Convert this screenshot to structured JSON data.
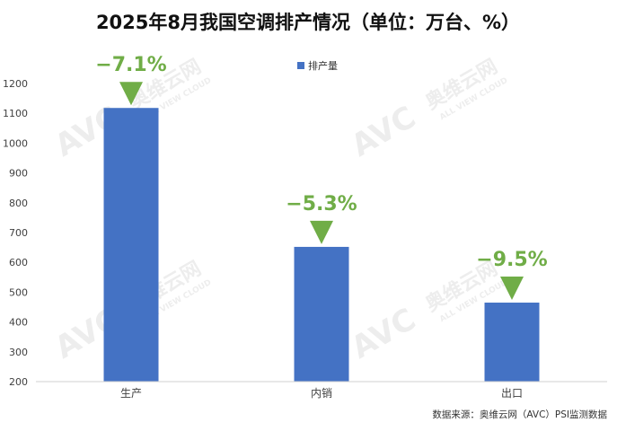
{
  "chart_data": {
    "type": "bar",
    "title": "2025年8月我国空调排产情况（单位：万台、%）",
    "categories": [
      "生产",
      "内销",
      "出口"
    ],
    "series": [
      {
        "name": "排产量",
        "values": [
          1118,
          652,
          465
        ]
      }
    ],
    "yticks": [
      "200",
      "300",
      "400",
      "500",
      "600",
      "700",
      "800",
      "900",
      "1000",
      "1100",
      "1200"
    ],
    "ylim": [
      200,
      1200
    ],
    "legend_position": "top",
    "grid": false,
    "annotations": [
      "−7.1%",
      "−5.3%",
      "−9.5%"
    ],
    "colors": {
      "bar": "#4472C4",
      "annotation": "#70AD47"
    }
  },
  "source": "数据来源：奥维云网（AVC）PSI监测数据",
  "watermark": {
    "brand": "奥维云网",
    "en": "ALL VIEW CLOUD",
    "logo": "AVC"
  }
}
